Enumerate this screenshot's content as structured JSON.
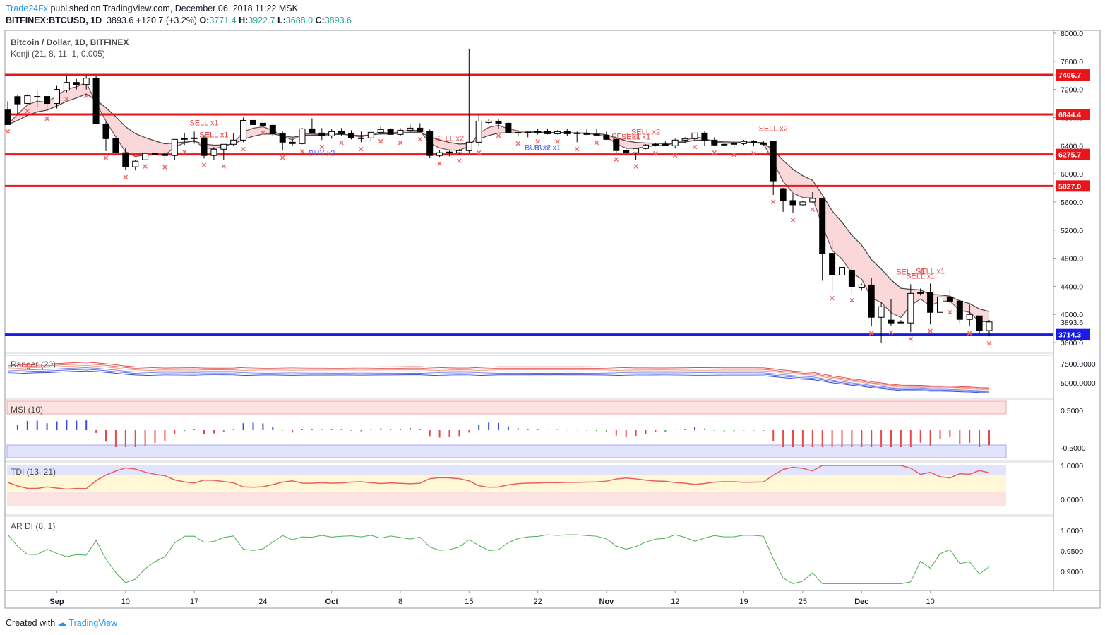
{
  "header": {
    "brand": "Trade24Fx",
    "published_text": "published on TradingView.com, December 06, 2018 11:22 MSK",
    "symbol": "BITFINEX:BTCUSD, 1D",
    "last": "3893.6",
    "change": "+120.7 (+3.2%)",
    "o_label": "O:",
    "o_value": "3771.4",
    "h_label": "H:",
    "h_value": "3922.7",
    "l_label": "L:",
    "l_value": "3688.0",
    "c_label": "C:",
    "c_value": "3893.6"
  },
  "footer": {
    "created_with": "Created with",
    "brand": "TradingView"
  },
  "colors": {
    "resistance": "#e8151b",
    "support": "#1b1be8",
    "cloud": "#f5b8bc",
    "cloud_green": "#b8e6c0",
    "up_candle": "#ffffff",
    "down_candle": "#000000"
  },
  "chart_data": [
    {
      "type": "candlestick",
      "title": "Bitcoin / Dollar, 1D, BITFINEX",
      "indicator": "Kenji (21, 8, 11, 1, 0.005)",
      "x_ticks": [
        "Sep",
        "10",
        "17",
        "24",
        "Oct",
        "8",
        "15",
        "22",
        "Nov",
        "12",
        "19",
        "25",
        "Dec",
        "10"
      ],
      "y_ticks": [
        "8000.0",
        "7600.0",
        "7200.0",
        "6800.0",
        "6400.0",
        "6000.0",
        "5600.0",
        "5200.0",
        "4800.0",
        "4400.0",
        "4000.0",
        "3600.0"
      ],
      "ylim": [
        3450,
        8040
      ],
      "last_price": "3893.6",
      "levels": [
        {
          "label": "7406.7",
          "value": 7406.7,
          "kind": "resistance"
        },
        {
          "label": "6844.4",
          "value": 6844.4,
          "kind": "resistance"
        },
        {
          "label": "6275.7",
          "value": 6275.7,
          "kind": "resistance"
        },
        {
          "label": "5827.0",
          "value": 5827.0,
          "kind": "resistance"
        },
        {
          "label": "3714.3",
          "value": 3714.3,
          "kind": "support"
        }
      ],
      "ohlc": [
        [
          6908,
          7030,
          6700,
          6700
        ],
        [
          7098,
          7120,
          6839,
          6994
        ],
        [
          7001,
          7130,
          6992,
          7110
        ],
        [
          7100,
          7190,
          6950,
          7090
        ],
        [
          7100,
          7100,
          6880,
          7000
        ],
        [
          7000,
          7250,
          6930,
          7200
        ],
        [
          7190,
          7400,
          7160,
          7300
        ],
        [
          7300,
          7350,
          7200,
          7270
        ],
        [
          7270,
          7400,
          7200,
          7360
        ],
        [
          7360,
          7389,
          6720,
          6710
        ],
        [
          6710,
          6740,
          6324,
          6500
        ],
        [
          6500,
          6500,
          6300,
          6300
        ],
        [
          6300,
          6370,
          6050,
          6100
        ],
        [
          6100,
          6200,
          6050,
          6180
        ],
        [
          6200,
          6310,
          6200,
          6290
        ],
        [
          6290,
          6340,
          6250,
          6280
        ],
        [
          6280,
          6300,
          6190,
          6260
        ],
        [
          6260,
          6480,
          6200,
          6490
        ],
        [
          6490,
          6580,
          6410,
          6500
        ],
        [
          6500,
          6600,
          6430,
          6510
        ],
        [
          6510,
          6550,
          6220,
          6260
        ],
        [
          6260,
          6380,
          6200,
          6350
        ],
        [
          6350,
          6400,
          6200,
          6420
        ],
        [
          6420,
          6580,
          6400,
          6480
        ],
        [
          6480,
          6800,
          6450,
          6760
        ],
        [
          6760,
          6780,
          6680,
          6700
        ],
        [
          6720,
          6780,
          6680,
          6690
        ],
        [
          6690,
          6700,
          6540,
          6570
        ],
        [
          6570,
          6600,
          6330,
          6450
        ],
        [
          6450,
          6500,
          6400,
          6430
        ],
        [
          6430,
          6650,
          6420,
          6640
        ],
        [
          6640,
          6790,
          6600,
          6580
        ],
        [
          6580,
          6650,
          6480,
          6540
        ],
        [
          6540,
          6640,
          6500,
          6600
        ],
        [
          6600,
          6650,
          6540,
          6570
        ],
        [
          6570,
          6620,
          6490,
          6510
        ],
        [
          6510,
          6600,
          6450,
          6510
        ],
        [
          6510,
          6600,
          6460,
          6590
        ],
        [
          6590,
          6680,
          6560,
          6630
        ],
        [
          6630,
          6650,
          6560,
          6560
        ],
        [
          6560,
          6650,
          6540,
          6620
        ],
        [
          6620,
          6700,
          6590,
          6650
        ],
        [
          6650,
          6720,
          6590,
          6600
        ],
        [
          6600,
          6630,
          6230,
          6260
        ],
        [
          6260,
          6340,
          6240,
          6300
        ],
        [
          6300,
          6330,
          6250,
          6310
        ],
        [
          6300,
          6350,
          6280,
          6330
        ],
        [
          6330,
          7780,
          6300,
          6450
        ],
        [
          6450,
          6840,
          6400,
          6750
        ],
        [
          6730,
          6780,
          6700,
          6750
        ],
        [
          6750,
          6780,
          6640,
          6720
        ],
        [
          6720,
          6730,
          6580,
          6590
        ],
        [
          6590,
          6620,
          6530,
          6580
        ],
        [
          6580,
          6600,
          6520,
          6590
        ],
        [
          6590,
          6640,
          6560,
          6600
        ],
        [
          6600,
          6640,
          6560,
          6570
        ],
        [
          6570,
          6620,
          6560,
          6600
        ],
        [
          6600,
          6640,
          6540,
          6570
        ],
        [
          6570,
          6600,
          6450,
          6580
        ],
        [
          6580,
          6640,
          6550,
          6560
        ],
        [
          6560,
          6640,
          6540,
          6550
        ],
        [
          6550,
          6600,
          6480,
          6490
        ],
        [
          6490,
          6520,
          6300,
          6330
        ],
        [
          6330,
          6360,
          6280,
          6300
        ],
        [
          6300,
          6350,
          6200,
          6360
        ],
        [
          6360,
          6420,
          6350,
          6410
        ],
        [
          6410,
          6440,
          6390,
          6420
        ],
        [
          6420,
          6460,
          6400,
          6400
        ],
        [
          6400,
          6500,
          6360,
          6480
        ],
        [
          6480,
          6520,
          6440,
          6500
        ],
        [
          6500,
          6580,
          6480,
          6580
        ],
        [
          6580,
          6600,
          6400,
          6480
        ],
        [
          6480,
          6520,
          6400,
          6410
        ],
        [
          6410,
          6440,
          6390,
          6420
        ],
        [
          6420,
          6460,
          6370,
          6430
        ],
        [
          6430,
          6480,
          6410,
          6460
        ],
        [
          6460,
          6480,
          6390,
          6440
        ],
        [
          6440,
          6470,
          6400,
          6420
        ],
        [
          6460,
          6470,
          5700,
          5900
        ],
        [
          5790,
          5800,
          5460,
          5620
        ],
        [
          5620,
          5720,
          5440,
          5560
        ],
        [
          5560,
          5620,
          5550,
          5600
        ],
        [
          5600,
          5740,
          5590,
          5650
        ],
        [
          5650,
          5660,
          4480,
          4870
        ],
        [
          4870,
          5050,
          4330,
          4560
        ],
        [
          4560,
          4690,
          4420,
          4670
        ],
        [
          4630,
          4680,
          4300,
          4390
        ],
        [
          4380,
          4440,
          4340,
          4420
        ],
        [
          4420,
          4520,
          3830,
          3960
        ],
        [
          3960,
          4180,
          3590,
          4110
        ],
        [
          3920,
          4220,
          3840,
          3880
        ],
        [
          3890,
          3920,
          3880,
          3890
        ],
        [
          3880,
          4430,
          3750,
          4300
        ],
        [
          4300,
          4370,
          4270,
          4310
        ],
        [
          4310,
          4440,
          3860,
          4030
        ],
        [
          4030,
          4380,
          3950,
          4250
        ],
        [
          4250,
          4350,
          4130,
          4190
        ],
        [
          4190,
          4190,
          3880,
          3930
        ],
        [
          3930,
          4140,
          3830,
          4000
        ],
        [
          3980,
          3980,
          3720,
          3770
        ],
        [
          3771.4,
          3922.7,
          3688,
          3893.6
        ]
      ],
      "signals": [
        {
          "label": "SELL x1",
          "day": 36
        },
        {
          "label": "SELL x1",
          "day": 37
        },
        {
          "label": "SELL x1",
          "day": 38
        },
        {
          "label": "SELL x2",
          "day": 81
        },
        {
          "label": "SELL x1",
          "day": 113
        },
        {
          "label": "SELL x1",
          "day": 115
        },
        {
          "label": "SELL x2",
          "day": 117
        },
        {
          "label": "SELL x2",
          "day": 141
        },
        {
          "label": "SELL x1",
          "day": 166
        },
        {
          "label": "SELL x1",
          "day": 168
        },
        {
          "label": "SELL x1",
          "day": 169
        },
        {
          "label": "BUY x2",
          "day": 58
        },
        {
          "label": "BUY x1",
          "day": 99
        },
        {
          "label": "BUY x2",
          "day": 98
        }
      ]
    },
    {
      "type": "line",
      "title": "Ranger (20)",
      "y_ticks": [
        "7500.0000",
        "5000.0000"
      ]
    },
    {
      "type": "bar",
      "title": "MSI (10)",
      "y_ticks": [
        "0.5000",
        "-0.5000"
      ]
    },
    {
      "type": "line",
      "title": "TDI (13, 21)",
      "y_ticks": [
        "1.0000",
        "0.0000"
      ]
    },
    {
      "type": "line",
      "title": "AR DI (8, 1)",
      "y_ticks": [
        "1.0000",
        "0.9500",
        "0.9000"
      ]
    }
  ]
}
